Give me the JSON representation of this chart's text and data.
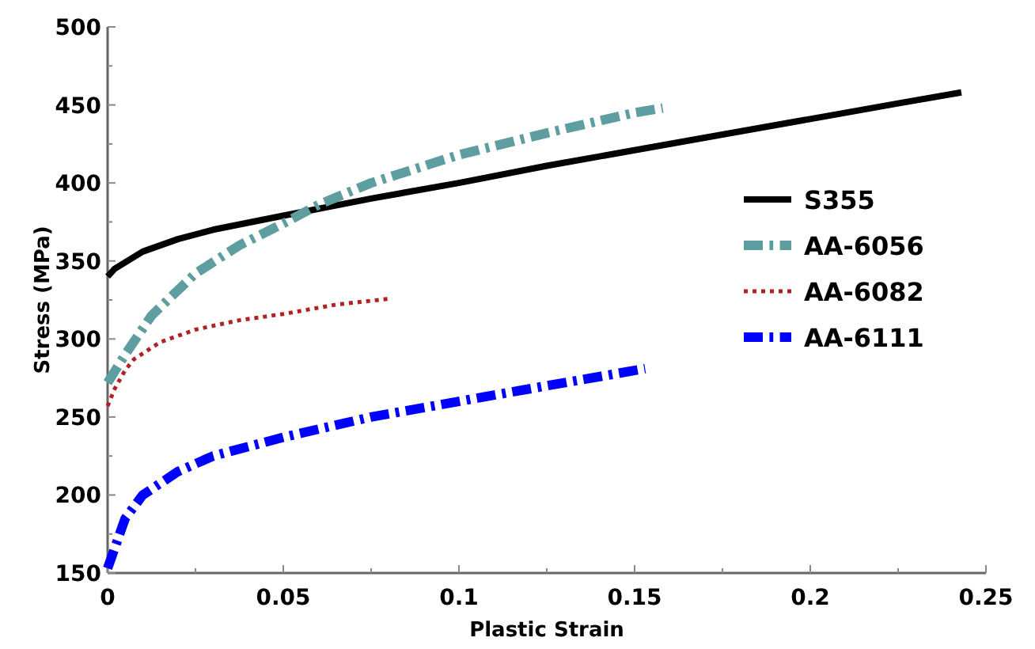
{
  "chart_data": {
    "type": "line",
    "xlabel": "Plastic Strain",
    "ylabel": "Stress (MPa)",
    "xlim": [
      0,
      0.25
    ],
    "ylim": [
      150,
      500
    ],
    "xticks": [
      0,
      {
        "value": 0.025,
        "label": null
      },
      0.05,
      {
        "value": 0.075,
        "label": null
      },
      0.1,
      {
        "value": 0.125,
        "label": null
      },
      0.15,
      {
        "value": 0.175,
        "label": null
      },
      0.2,
      {
        "value": 0.225,
        "label": null
      },
      0.25
    ],
    "yticks": [
      150,
      {
        "value": 175,
        "label": null
      },
      200,
      {
        "value": 225,
        "label": null
      },
      250,
      {
        "value": 275,
        "label": null
      },
      300,
      {
        "value": 325,
        "label": null
      },
      350,
      {
        "value": 375,
        "label": null
      },
      400,
      {
        "value": 425,
        "label": null
      },
      450,
      {
        "value": 475,
        "label": null
      },
      500
    ],
    "grid": false,
    "legend": "right",
    "marker": "none",
    "series": [
      {
        "name": "S355",
        "color": "#000000",
        "line_style": "solid",
        "x": [
          0,
          0.002,
          0.01,
          0.02,
          0.03,
          0.05,
          0.075,
          0.1,
          0.125,
          0.15,
          0.175,
          0.2,
          0.225,
          0.243
        ],
        "values": [
          340,
          345,
          356,
          364,
          370,
          379,
          390,
          400,
          411,
          421,
          431,
          441,
          451,
          458
        ]
      },
      {
        "name": "AA-6056",
        "color": "#5f9ea0",
        "line_style": "dashed",
        "x": [
          0,
          0.005,
          0.0125,
          0.025,
          0.0375,
          0.05,
          0.06,
          0.075,
          0.1,
          0.125,
          0.15,
          0.158
        ],
        "values": [
          272,
          290,
          315,
          342,
          360,
          374,
          386,
          400,
          418,
          432,
          445,
          448
        ]
      },
      {
        "name": "AA-6082",
        "color": "#b22222",
        "line_style": "dotted",
        "x": [
          0,
          0.002,
          0.005,
          0.0075,
          0.015,
          0.025,
          0.0375,
          0.05,
          0.065,
          0.081
        ],
        "values": [
          257,
          268,
          280,
          287,
          298,
          306,
          312,
          316,
          322,
          326
        ]
      },
      {
        "name": "AA-6111",
        "color": "#0000ff",
        "line_style": "dashed",
        "x": [
          0,
          0.005,
          0.01,
          0.02,
          0.03,
          0.05,
          0.075,
          0.1,
          0.125,
          0.153
        ],
        "values": [
          153,
          185,
          200,
          215,
          225,
          237,
          250,
          260,
          270,
          281
        ]
      }
    ]
  }
}
